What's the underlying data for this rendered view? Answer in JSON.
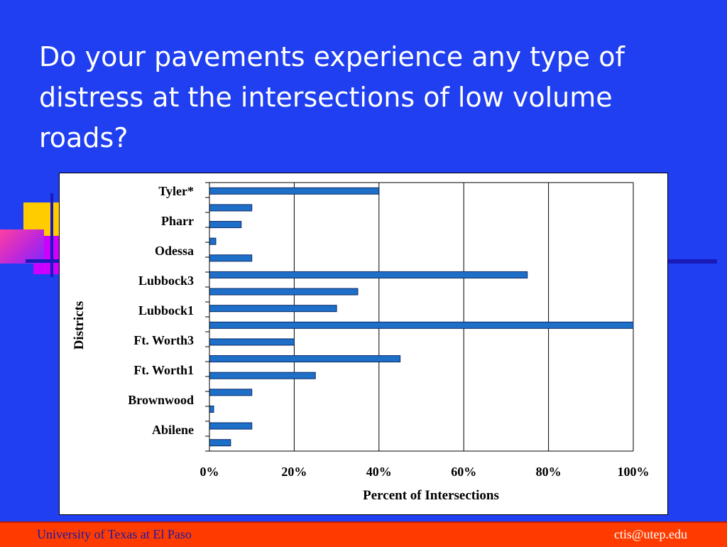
{
  "slide": {
    "title": "Do your pavements experience any type of distress at the intersections of low volume roads?"
  },
  "footer": {
    "left": "University of Texas at El Paso",
    "right": "ctis@utep.edu"
  },
  "colors": {
    "background": "#1f3ff0",
    "bar": "#1e6fc8",
    "footer": "#ff3b00"
  },
  "chart_data": {
    "type": "bar",
    "orientation": "horizontal",
    "title": "",
    "xlabel": "Percent of Intersections",
    "ylabel": "Districts",
    "xlim": [
      0,
      100
    ],
    "x_ticks": [
      "0%",
      "20%",
      "40%",
      "60%",
      "80%",
      "100%"
    ],
    "category_labels": [
      "Tyler*",
      "Pharr",
      "Odessa",
      "Lubbock3",
      "Lubbock1",
      "Ft. Worth3",
      "Ft. Worth1",
      "Brownwood",
      "Abilene"
    ],
    "values_top_to_bottom": [
      40,
      10,
      7.5,
      1.5,
      10,
      75,
      35,
      30,
      100,
      20,
      45,
      25,
      10,
      1,
      10,
      5
    ],
    "grid": "vertical",
    "legend": "none"
  }
}
